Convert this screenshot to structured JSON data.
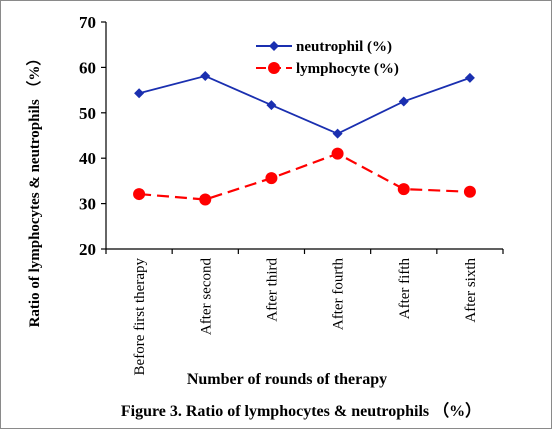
{
  "chart_data": {
    "type": "line",
    "categories": [
      "Before first therapy",
      "After second",
      "After third",
      "After fourth",
      "After fifth",
      "After sixth"
    ],
    "series": [
      {
        "name": "neutrophil (%)",
        "values": [
          54.3,
          58.1,
          51.7,
          45.4,
          52.5,
          57.7
        ],
        "color": "#1a2fb0",
        "marker": "diamond",
        "line": "solid"
      },
      {
        "name": "lymphocyte (%)",
        "values": [
          32.1,
          30.9,
          35.6,
          41.0,
          33.2,
          32.6
        ],
        "color": "#ff0000",
        "marker": "circle",
        "line": "dashed"
      }
    ],
    "ylim": [
      20,
      70
    ],
    "yticks": [
      20,
      30,
      40,
      50,
      60,
      70
    ],
    "ylabel": "Ratio of lymphocytes & neutrophils （%）",
    "xlabel": "Number of rounds of therapy",
    "legend_position": "top-right",
    "grid": false
  },
  "caption": "Figure 3. Ratio of lymphocytes & neutrophils （%）"
}
